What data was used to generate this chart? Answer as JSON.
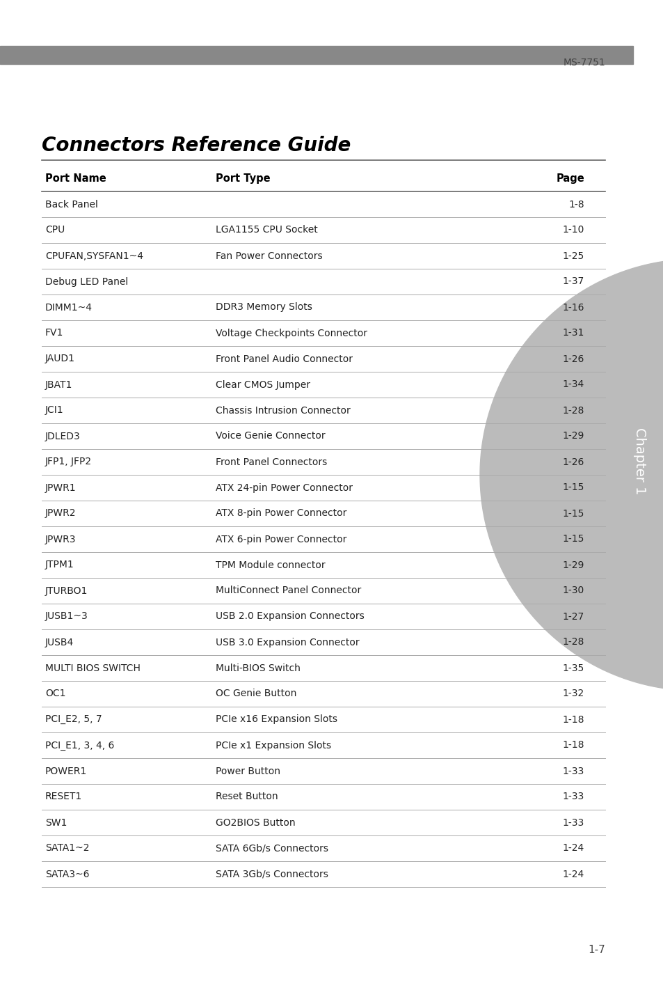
{
  "ms_number": "MS-7751",
  "title": "Connectors Reference Guide",
  "header": [
    "Port Name",
    "Port Type",
    "Page"
  ],
  "rows": [
    [
      "Back Panel",
      "",
      "1-8"
    ],
    [
      "CPU",
      "LGA1155 CPU Socket",
      "1-10"
    ],
    [
      "CPUFAN,SYSFAN1~4",
      "Fan Power Connectors",
      "1-25"
    ],
    [
      "Debug LED Panel",
      "",
      "1-37"
    ],
    [
      "DIMM1~4",
      "DDR3 Memory Slots",
      "1-16"
    ],
    [
      "FV1",
      "Voltage Checkpoints Connector",
      "1-31"
    ],
    [
      "JAUD1",
      "Front Panel Audio Connector",
      "1-26"
    ],
    [
      "JBAT1",
      "Clear CMOS Jumper",
      "1-34"
    ],
    [
      "JCI1",
      "Chassis Intrusion Connector",
      "1-28"
    ],
    [
      "JDLED3",
      "Voice Genie Connector",
      "1-29"
    ],
    [
      "JFP1, JFP2",
      "Front Panel Connectors",
      "1-26"
    ],
    [
      "JPWR1",
      "ATX 24-pin Power Connector",
      "1-15"
    ],
    [
      "JPWR2",
      "ATX 8-pin Power Connector",
      "1-15"
    ],
    [
      "JPWR3",
      "ATX 6-pin Power Connector",
      "1-15"
    ],
    [
      "JTPM1",
      "TPM Module connector",
      "1-29"
    ],
    [
      "JTURBO1",
      "MultiConnect Panel Connector",
      "1-30"
    ],
    [
      "JUSB1~3",
      "USB 2.0 Expansion Connectors",
      "1-27"
    ],
    [
      "JUSB4",
      "USB 3.0 Expansion Connector",
      "1-28"
    ],
    [
      "MULTI BIOS SWITCH",
      "Multi-BIOS Switch",
      "1-35"
    ],
    [
      "OC1",
      "OC Genie Button",
      "1-32"
    ],
    [
      "PCI_E2, 5, 7",
      "PCIe x16 Expansion Slots",
      "1-18"
    ],
    [
      "PCI_E1, 3, 4, 6",
      "PCIe x1 Expansion Slots",
      "1-18"
    ],
    [
      "POWER1",
      "Power Button",
      "1-33"
    ],
    [
      "RESET1",
      "Reset Button",
      "1-33"
    ],
    [
      "SW1",
      "GO2BIOS Button",
      "1-33"
    ],
    [
      "SATA1~2",
      "SATA 6Gb/s Connectors",
      "1-24"
    ],
    [
      "SATA3~6",
      "SATA 3Gb/s Connectors",
      "1-24"
    ]
  ],
  "page_number": "1-7",
  "chapter_label": "Chapter 1",
  "bg_color": "#ffffff",
  "header_bar_color": "#888888",
  "line_color": "#aaaaaa",
  "title_color": "#000000",
  "text_color": "#222222",
  "chapter_tab_color": "#bbbbbb"
}
